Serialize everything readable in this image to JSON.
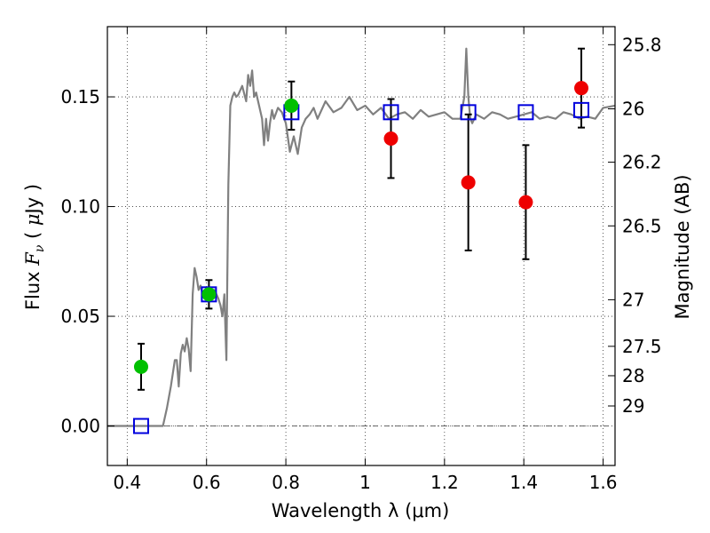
{
  "chart_data": {
    "type": "scatter",
    "xlabel": "Wavelength  λ (μm)",
    "ylabel": "Flux  F_ν  ( μJy )",
    "ylabel_right": "Magnitude (AB)",
    "xlim": [
      0.35,
      1.63
    ],
    "ylim": [
      -0.018,
      0.182
    ],
    "grid": true,
    "x_ticks": [
      0.4,
      0.6,
      0.8,
      1.0,
      1.2,
      1.4,
      1.6
    ],
    "x_tick_labels": [
      "0.4",
      "0.6",
      "0.8",
      "1",
      "1.2",
      "1.4",
      "1.6"
    ],
    "y_ticks": [
      0.0,
      0.05,
      0.1,
      0.15
    ],
    "y_tick_labels": [
      "0.00",
      "0.05",
      "0.10",
      "0.15"
    ],
    "mag_ticks": [
      25.8,
      26,
      26.2,
      26.5,
      27,
      27.5,
      28,
      29
    ],
    "mag_tick_labels": [
      "25.8",
      "26",
      "26.2",
      "26.5",
      "27",
      "27.5",
      "28",
      "29"
    ],
    "series": [
      {
        "kind": "sed_model_line",
        "color": "#808080",
        "x": [
          0.35,
          0.49,
          0.5,
          0.51,
          0.52,
          0.525,
          0.53,
          0.535,
          0.54,
          0.545,
          0.55,
          0.555,
          0.56,
          0.565,
          0.57,
          0.575,
          0.58,
          0.585,
          0.59,
          0.6,
          0.61,
          0.615,
          0.62,
          0.625,
          0.63,
          0.635,
          0.64,
          0.645,
          0.65,
          0.655,
          0.66,
          0.665,
          0.67,
          0.675,
          0.68,
          0.69,
          0.7,
          0.705,
          0.71,
          0.715,
          0.72,
          0.725,
          0.73,
          0.74,
          0.745,
          0.75,
          0.755,
          0.76,
          0.765,
          0.77,
          0.78,
          0.79,
          0.8,
          0.81,
          0.82,
          0.83,
          0.84,
          0.85,
          0.86,
          0.87,
          0.88,
          0.9,
          0.92,
          0.94,
          0.96,
          0.98,
          1.0,
          1.02,
          1.04,
          1.06,
          1.08,
          1.1,
          1.12,
          1.14,
          1.16,
          1.18,
          1.2,
          1.22,
          1.24,
          1.25,
          1.255,
          1.26,
          1.265,
          1.27,
          1.28,
          1.3,
          1.32,
          1.34,
          1.36,
          1.38,
          1.4,
          1.42,
          1.44,
          1.46,
          1.48,
          1.5,
          1.52,
          1.54,
          1.56,
          1.58,
          1.6,
          1.63
        ],
        "y": [
          0.0,
          0.0,
          0.008,
          0.018,
          0.03,
          0.03,
          0.018,
          0.033,
          0.037,
          0.034,
          0.04,
          0.035,
          0.025,
          0.06,
          0.072,
          0.068,
          0.062,
          0.064,
          0.06,
          0.063,
          0.062,
          0.058,
          0.062,
          0.06,
          0.058,
          0.055,
          0.05,
          0.06,
          0.03,
          0.11,
          0.146,
          0.15,
          0.152,
          0.15,
          0.151,
          0.155,
          0.148,
          0.16,
          0.155,
          0.162,
          0.15,
          0.152,
          0.148,
          0.14,
          0.128,
          0.14,
          0.13,
          0.138,
          0.144,
          0.14,
          0.145,
          0.143,
          0.138,
          0.125,
          0.132,
          0.124,
          0.136,
          0.14,
          0.142,
          0.145,
          0.14,
          0.148,
          0.143,
          0.145,
          0.15,
          0.144,
          0.146,
          0.142,
          0.145,
          0.14,
          0.142,
          0.143,
          0.14,
          0.144,
          0.141,
          0.142,
          0.143,
          0.14,
          0.14,
          0.15,
          0.172,
          0.15,
          0.14,
          0.138,
          0.142,
          0.14,
          0.143,
          0.142,
          0.14,
          0.141,
          0.142,
          0.143,
          0.14,
          0.141,
          0.14,
          0.143,
          0.142,
          0.14,
          0.141,
          0.14,
          0.145,
          0.146
        ]
      },
      {
        "kind": "model_photometry",
        "marker": "open_square",
        "color": "#0000dd",
        "x": [
          0.435,
          0.606,
          0.814,
          1.065,
          1.26,
          1.405,
          1.545
        ],
        "y": [
          0.0,
          0.06,
          0.143,
          0.143,
          0.143,
          0.143,
          0.144
        ]
      },
      {
        "kind": "detections",
        "marker": "filled_circle",
        "color": "#00c000",
        "x": [
          0.435,
          0.606,
          0.814
        ],
        "y": [
          0.027,
          0.06,
          0.146
        ],
        "yerr": [
          0.0105,
          0.0065,
          0.011
        ]
      },
      {
        "kind": "detections",
        "marker": "filled_circle",
        "color": "#ee0000",
        "x": [
          1.065,
          1.26,
          1.405,
          1.545
        ],
        "y": [
          0.131,
          0.111,
          0.102,
          0.154
        ],
        "yerr": [
          0.018,
          0.031,
          0.026,
          0.018
        ]
      }
    ]
  }
}
